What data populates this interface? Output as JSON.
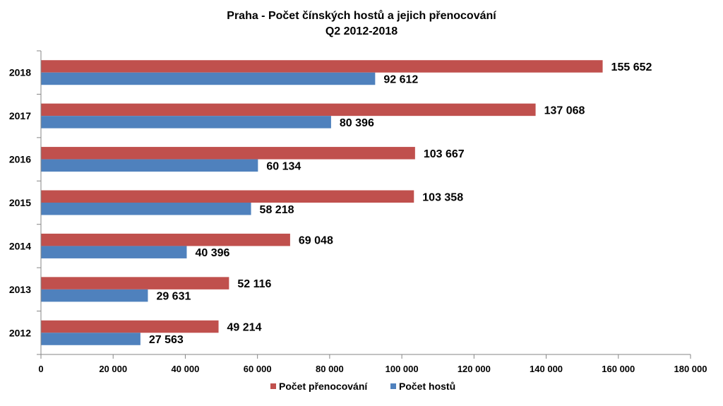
{
  "chart_data": {
    "type": "bar",
    "orientation": "horizontal",
    "title": "Praha - Počet čínských hostů a jejich přenocování",
    "subtitle": "Q2 2012-2018",
    "categories": [
      "2018",
      "2017",
      "2016",
      "2015",
      "2014",
      "2013",
      "2012"
    ],
    "series": [
      {
        "name": "Počet přenocování",
        "color": "#c0504d",
        "values": [
          155652,
          137068,
          103667,
          103358,
          69048,
          52116,
          49214
        ],
        "labels": [
          "155 652",
          "137 068",
          "103 667",
          "103 358",
          "69 048",
          "52 116",
          "49 214"
        ]
      },
      {
        "name": "Počet hostů",
        "color": "#4f81bd",
        "values": [
          92612,
          80396,
          60134,
          58218,
          40396,
          29631,
          27563
        ],
        "labels": [
          "92 612",
          "80 396",
          "60 134",
          "58 218",
          "40 396",
          "29 631",
          "27 563"
        ]
      }
    ],
    "xlim": [
      0,
      180000
    ],
    "x_ticks": [
      0,
      20000,
      40000,
      60000,
      80000,
      100000,
      120000,
      140000,
      160000,
      180000
    ],
    "x_tick_labels": [
      "0",
      "20 000",
      "40 000",
      "60 000",
      "80 000",
      "100 000",
      "120 000",
      "140 000",
      "160 000",
      "180 000"
    ],
    "grid": false,
    "legend_position": "bottom",
    "legend_order": [
      0,
      1
    ]
  }
}
